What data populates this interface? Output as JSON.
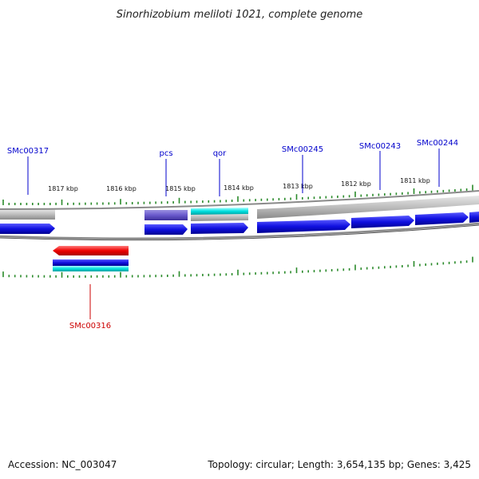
{
  "title": "Sinorhizobium meliloti 1021, complete genome",
  "accession": "Accession: NC_003047",
  "summary": "Topology: circular; Length: 3,654,135 bp; Genes: 3,425",
  "tick_labels": [
    "1817 kbp",
    "1816 kbp",
    "1815 kbp",
    "1814 kbp",
    "1813 kbp",
    "1812 kbp",
    "1811 kbp"
  ],
  "gene_labels": [
    {
      "name": "SMc00317",
      "strand": "forward"
    },
    {
      "name": "pcs",
      "strand": "forward"
    },
    {
      "name": "qor",
      "strand": "forward"
    },
    {
      "name": "SMc00245",
      "strand": "forward"
    },
    {
      "name": "SMc00243",
      "strand": "forward"
    },
    {
      "name": "SMc00244",
      "strand": "forward"
    },
    {
      "name": "SMc00316",
      "strand": "reverse"
    }
  ],
  "colors": {
    "forward_label": "#0000cc",
    "reverse_label": "#cc0000",
    "cds_forward": "#1a1aee",
    "cds_reverse": "#ee1111",
    "tick": "#2a8a2a",
    "backbone": "#777777"
  }
}
